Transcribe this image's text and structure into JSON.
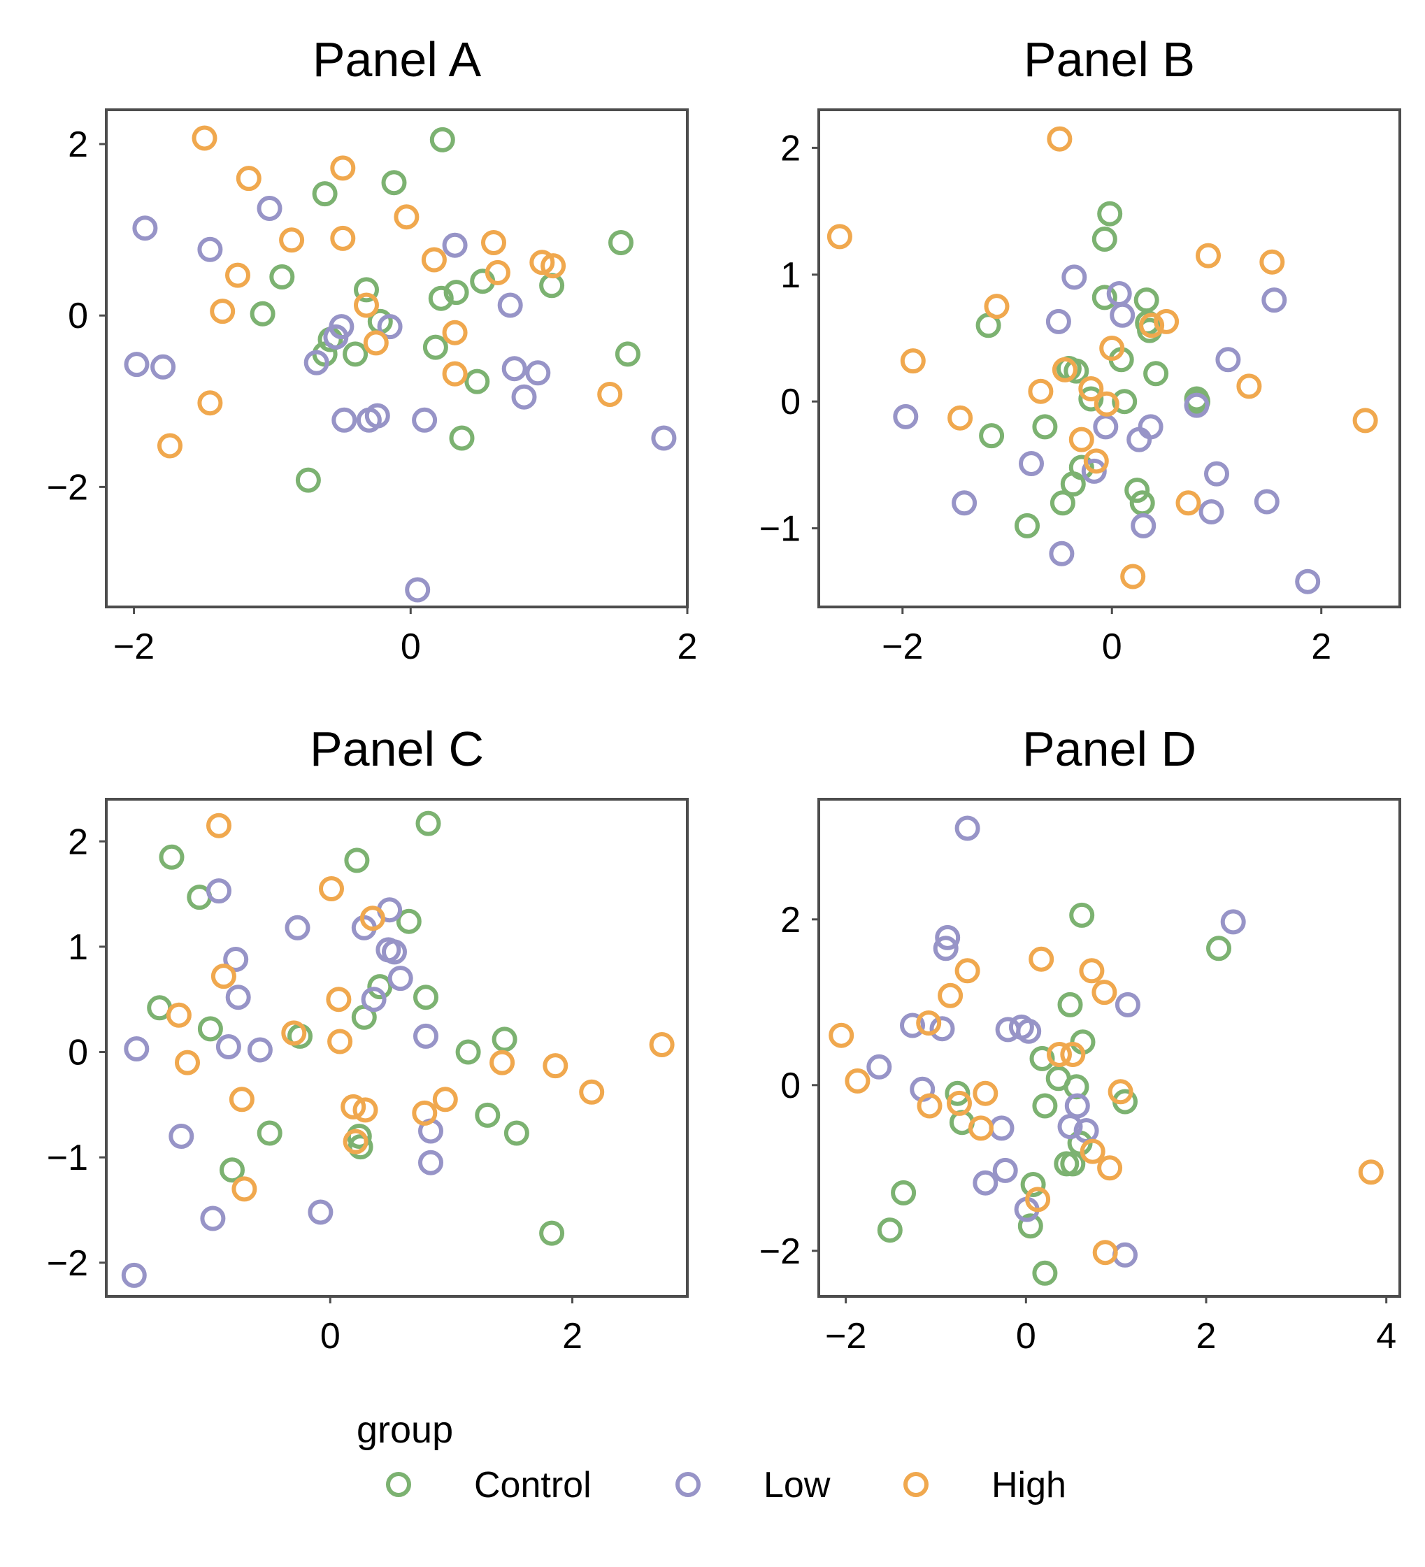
{
  "colors": {
    "Control": "#7cb271",
    "Low": "#9794c7",
    "High": "#f0a84e"
  },
  "legend": {
    "title": "group",
    "items": [
      {
        "key": "Control",
        "label": "Control"
      },
      {
        "key": "Low",
        "label": "Low"
      },
      {
        "key": "High",
        "label": "High"
      }
    ]
  },
  "chart_data": [
    {
      "type": "scatter",
      "title": "Panel A",
      "xlim": [
        -2.2,
        2.0
      ],
      "ylim": [
        -3.4,
        2.4
      ],
      "xticks": [
        -2,
        0,
        2
      ],
      "xtick_labels": [
        "−2",
        "0",
        "2"
      ],
      "yticks": [
        -2,
        0,
        2
      ],
      "ytick_labels": [
        "−2",
        "0",
        "2"
      ],
      "series": [
        {
          "group": "Control",
          "points": [
            [
              0.23,
              2.05
            ],
            [
              -0.12,
              1.55
            ],
            [
              -0.62,
              1.42
            ],
            [
              1.52,
              0.85
            ],
            [
              -0.93,
              0.45
            ],
            [
              -0.32,
              0.3
            ],
            [
              0.22,
              0.2
            ],
            [
              0.33,
              0.27
            ],
            [
              0.52,
              0.4
            ],
            [
              1.02,
              0.35
            ],
            [
              -1.07,
              0.02
            ],
            [
              -0.22,
              -0.07
            ],
            [
              -0.58,
              -0.28
            ],
            [
              -0.4,
              -0.45
            ],
            [
              -0.62,
              -0.45
            ],
            [
              0.18,
              -0.37
            ],
            [
              1.57,
              -0.45
            ],
            [
              0.48,
              -0.77
            ],
            [
              0.37,
              -1.43
            ],
            [
              -0.74,
              -1.92
            ]
          ]
        },
        {
          "group": "Low",
          "points": [
            [
              -1.92,
              1.02
            ],
            [
              -1.02,
              1.25
            ],
            [
              -1.45,
              0.77
            ],
            [
              0.32,
              0.82
            ],
            [
              0.72,
              0.12
            ],
            [
              -0.5,
              -0.13
            ],
            [
              -0.15,
              -0.13
            ],
            [
              -0.54,
              -0.25
            ],
            [
              -0.68,
              -0.55
            ],
            [
              -1.98,
              -0.57
            ],
            [
              -1.79,
              -0.6
            ],
            [
              0.75,
              -0.62
            ],
            [
              0.92,
              -0.67
            ],
            [
              0.82,
              -0.95
            ],
            [
              -0.48,
              -1.22
            ],
            [
              -0.3,
              -1.22
            ],
            [
              -0.24,
              -1.17
            ],
            [
              0.1,
              -1.22
            ],
            [
              1.83,
              -1.43
            ],
            [
              0.05,
              -3.2
            ]
          ]
        },
        {
          "group": "High",
          "points": [
            [
              -1.49,
              2.07
            ],
            [
              -1.17,
              1.6
            ],
            [
              -0.49,
              1.72
            ],
            [
              -0.03,
              1.15
            ],
            [
              -0.86,
              0.88
            ],
            [
              -0.49,
              0.9
            ],
            [
              0.17,
              0.65
            ],
            [
              0.6,
              0.85
            ],
            [
              -1.25,
              0.47
            ],
            [
              0.63,
              0.5
            ],
            [
              0.95,
              0.62
            ],
            [
              1.03,
              0.58
            ],
            [
              -1.36,
              0.05
            ],
            [
              -0.32,
              0.12
            ],
            [
              0.32,
              -0.2
            ],
            [
              -0.25,
              -0.32
            ],
            [
              0.32,
              -0.68
            ],
            [
              -1.45,
              -1.02
            ],
            [
              1.44,
              -0.92
            ],
            [
              -1.74,
              -1.52
            ]
          ]
        }
      ]
    },
    {
      "type": "scatter",
      "title": "Panel B",
      "xlim": [
        -2.8,
        2.75
      ],
      "ylim": [
        -1.62,
        2.3
      ],
      "xticks": [
        -2,
        0,
        2
      ],
      "xtick_labels": [
        "−2",
        "0",
        "2"
      ],
      "yticks": [
        -1,
        0,
        1,
        2
      ],
      "ytick_labels": [
        "−1",
        "0",
        "1",
        "2"
      ],
      "series": [
        {
          "group": "Control",
          "points": [
            [
              -0.02,
              1.48
            ],
            [
              -0.07,
              1.28
            ],
            [
              -0.07,
              0.82
            ],
            [
              0.33,
              0.8
            ],
            [
              0.34,
              0.62
            ],
            [
              0.36,
              0.56
            ],
            [
              -1.18,
              0.6
            ],
            [
              0.09,
              0.33
            ],
            [
              -0.41,
              0.26
            ],
            [
              -0.34,
              0.24
            ],
            [
              0.42,
              0.22
            ],
            [
              -0.2,
              0.02
            ],
            [
              0.12,
              0.0
            ],
            [
              0.81,
              0.02
            ],
            [
              0.82,
              0.0
            ],
            [
              -1.15,
              -0.27
            ],
            [
              -0.64,
              -0.2
            ],
            [
              -0.29,
              -0.52
            ],
            [
              -0.37,
              -0.65
            ],
            [
              -0.47,
              -0.8
            ],
            [
              0.24,
              -0.7
            ],
            [
              0.29,
              -0.8
            ],
            [
              -0.81,
              -0.98
            ]
          ]
        },
        {
          "group": "Low",
          "points": [
            [
              -0.36,
              0.98
            ],
            [
              0.07,
              0.85
            ],
            [
              0.1,
              0.68
            ],
            [
              -0.51,
              0.63
            ],
            [
              1.55,
              0.8
            ],
            [
              1.11,
              0.33
            ],
            [
              0.81,
              -0.03
            ],
            [
              -1.97,
              -0.12
            ],
            [
              -0.06,
              -0.2
            ],
            [
              0.37,
              -0.2
            ],
            [
              0.26,
              -0.3
            ],
            [
              -0.77,
              -0.49
            ],
            [
              -0.17,
              -0.55
            ],
            [
              1.0,
              -0.57
            ],
            [
              -1.41,
              -0.8
            ],
            [
              0.95,
              -0.87
            ],
            [
              1.48,
              -0.79
            ],
            [
              0.3,
              -0.98
            ],
            [
              -0.48,
              -1.2
            ],
            [
              1.87,
              -1.42
            ]
          ]
        },
        {
          "group": "High",
          "points": [
            [
              -0.5,
              2.07
            ],
            [
              -2.6,
              1.3
            ],
            [
              0.92,
              1.15
            ],
            [
              1.53,
              1.1
            ],
            [
              -1.1,
              0.75
            ],
            [
              0.52,
              0.63
            ],
            [
              0.38,
              0.6
            ],
            [
              -1.9,
              0.32
            ],
            [
              0.0,
              0.42
            ],
            [
              -0.45,
              0.25
            ],
            [
              -0.68,
              0.08
            ],
            [
              -0.2,
              0.1
            ],
            [
              1.31,
              0.12
            ],
            [
              -0.05,
              -0.02
            ],
            [
              -1.45,
              -0.13
            ],
            [
              -0.29,
              -0.3
            ],
            [
              -0.15,
              -0.47
            ],
            [
              2.42,
              -0.15
            ],
            [
              0.73,
              -0.8
            ],
            [
              0.2,
              -1.38
            ]
          ]
        }
      ]
    },
    {
      "type": "scatter",
      "title": "Panel C",
      "xlim": [
        -1.85,
        2.95
      ],
      "ylim": [
        -2.32,
        2.4
      ],
      "xticks": [
        0,
        2
      ],
      "xtick_labels": [
        "0",
        "2"
      ],
      "yticks": [
        -2,
        -1,
        0,
        1,
        2
      ],
      "ytick_labels": [
        "−2",
        "−1",
        "0",
        "1",
        "2"
      ],
      "series": [
        {
          "group": "Control",
          "points": [
            [
              0.81,
              2.17
            ],
            [
              -1.31,
              1.85
            ],
            [
              0.22,
              1.82
            ],
            [
              -1.08,
              1.47
            ],
            [
              0.65,
              1.24
            ],
            [
              0.41,
              0.62
            ],
            [
              -1.41,
              0.42
            ],
            [
              0.79,
              0.52
            ],
            [
              0.28,
              0.33
            ],
            [
              -0.99,
              0.22
            ],
            [
              -0.25,
              0.15
            ],
            [
              1.44,
              0.12
            ],
            [
              1.14,
              0.0
            ],
            [
              0.24,
              -0.8
            ],
            [
              0.25,
              -0.9
            ],
            [
              1.3,
              -0.6
            ],
            [
              1.54,
              -0.77
            ],
            [
              -0.5,
              -0.77
            ],
            [
              -0.81,
              -1.12
            ],
            [
              1.83,
              -1.72
            ]
          ]
        },
        {
          "group": "Low",
          "points": [
            [
              -0.92,
              1.53
            ],
            [
              -0.27,
              1.18
            ],
            [
              0.28,
              1.18
            ],
            [
              0.49,
              1.35
            ],
            [
              0.48,
              0.97
            ],
            [
              0.53,
              0.95
            ],
            [
              0.58,
              0.7
            ],
            [
              -0.78,
              0.88
            ],
            [
              -0.76,
              0.52
            ],
            [
              0.36,
              0.5
            ],
            [
              -1.6,
              0.03
            ],
            [
              -0.84,
              0.05
            ],
            [
              -0.58,
              0.02
            ],
            [
              0.79,
              0.15
            ],
            [
              -1.23,
              -0.8
            ],
            [
              0.83,
              -0.75
            ],
            [
              0.83,
              -1.05
            ],
            [
              -0.97,
              -1.58
            ],
            [
              -0.08,
              -1.52
            ],
            [
              -1.62,
              -2.12
            ]
          ]
        },
        {
          "group": "High",
          "points": [
            [
              -0.92,
              2.15
            ],
            [
              0.01,
              1.55
            ],
            [
              0.35,
              1.27
            ],
            [
              -0.88,
              0.72
            ],
            [
              0.07,
              0.5
            ],
            [
              -1.25,
              0.35
            ],
            [
              -0.3,
              0.18
            ],
            [
              0.08,
              0.1
            ],
            [
              -1.18,
              -0.1
            ],
            [
              1.42,
              -0.1
            ],
            [
              1.86,
              -0.13
            ],
            [
              2.74,
              0.07
            ],
            [
              2.16,
              -0.38
            ],
            [
              -0.73,
              -0.45
            ],
            [
              0.95,
              -0.45
            ],
            [
              0.78,
              -0.58
            ],
            [
              0.19,
              -0.52
            ],
            [
              0.29,
              -0.55
            ],
            [
              0.21,
              -0.85
            ],
            [
              -0.71,
              -1.3
            ]
          ]
        }
      ]
    },
    {
      "type": "scatter",
      "title": "Panel D",
      "xlim": [
        -2.3,
        4.15
      ],
      "ylim": [
        -2.55,
        3.45
      ],
      "xticks": [
        -2,
        0,
        2,
        4
      ],
      "xtick_labels": [
        "−2",
        "0",
        "2",
        "4"
      ],
      "yticks": [
        -2,
        0,
        2
      ],
      "ytick_labels": [
        "−2",
        "0",
        "2"
      ],
      "series": [
        {
          "group": "Control",
          "points": [
            [
              0.62,
              2.05
            ],
            [
              2.14,
              1.65
            ],
            [
              0.49,
              0.97
            ],
            [
              0.63,
              0.52
            ],
            [
              0.18,
              0.32
            ],
            [
              0.36,
              0.08
            ],
            [
              0.56,
              -0.02
            ],
            [
              -0.76,
              -0.1
            ],
            [
              -0.71,
              -0.45
            ],
            [
              0.21,
              -0.25
            ],
            [
              1.1,
              -0.2
            ],
            [
              0.6,
              -0.7
            ],
            [
              0.45,
              -0.95
            ],
            [
              0.52,
              -0.95
            ],
            [
              0.08,
              -1.2
            ],
            [
              -1.36,
              -1.3
            ],
            [
              0.05,
              -1.7
            ],
            [
              -1.51,
              -1.75
            ],
            [
              0.21,
              -2.27
            ]
          ]
        },
        {
          "group": "Low",
          "points": [
            [
              -0.65,
              3.1
            ],
            [
              2.3,
              1.97
            ],
            [
              -0.87,
              1.78
            ],
            [
              -0.89,
              1.65
            ],
            [
              1.13,
              0.97
            ],
            [
              -1.26,
              0.72
            ],
            [
              -0.93,
              0.68
            ],
            [
              -0.2,
              0.67
            ],
            [
              -0.05,
              0.7
            ],
            [
              0.03,
              0.65
            ],
            [
              -1.63,
              0.22
            ],
            [
              -1.15,
              -0.05
            ],
            [
              0.57,
              -0.25
            ],
            [
              -0.27,
              -0.52
            ],
            [
              0.49,
              -0.5
            ],
            [
              0.67,
              -0.55
            ],
            [
              -0.23,
              -1.03
            ],
            [
              -0.45,
              -1.18
            ],
            [
              0.01,
              -1.5
            ],
            [
              1.1,
              -2.05
            ]
          ]
        },
        {
          "group": "High",
          "points": [
            [
              0.17,
              1.52
            ],
            [
              -0.65,
              1.38
            ],
            [
              0.73,
              1.38
            ],
            [
              0.87,
              1.12
            ],
            [
              -0.84,
              1.08
            ],
            [
              -1.08,
              0.75
            ],
            [
              -2.05,
              0.6
            ],
            [
              0.37,
              0.37
            ],
            [
              0.52,
              0.37
            ],
            [
              -1.87,
              0.05
            ],
            [
              1.05,
              -0.08
            ],
            [
              -0.45,
              -0.1
            ],
            [
              -1.07,
              -0.25
            ],
            [
              -0.74,
              -0.22
            ],
            [
              -0.5,
              -0.52
            ],
            [
              0.74,
              -0.8
            ],
            [
              0.93,
              -1.0
            ],
            [
              0.13,
              -1.38
            ],
            [
              3.83,
              -1.05
            ],
            [
              0.88,
              -2.02
            ]
          ]
        }
      ]
    }
  ]
}
